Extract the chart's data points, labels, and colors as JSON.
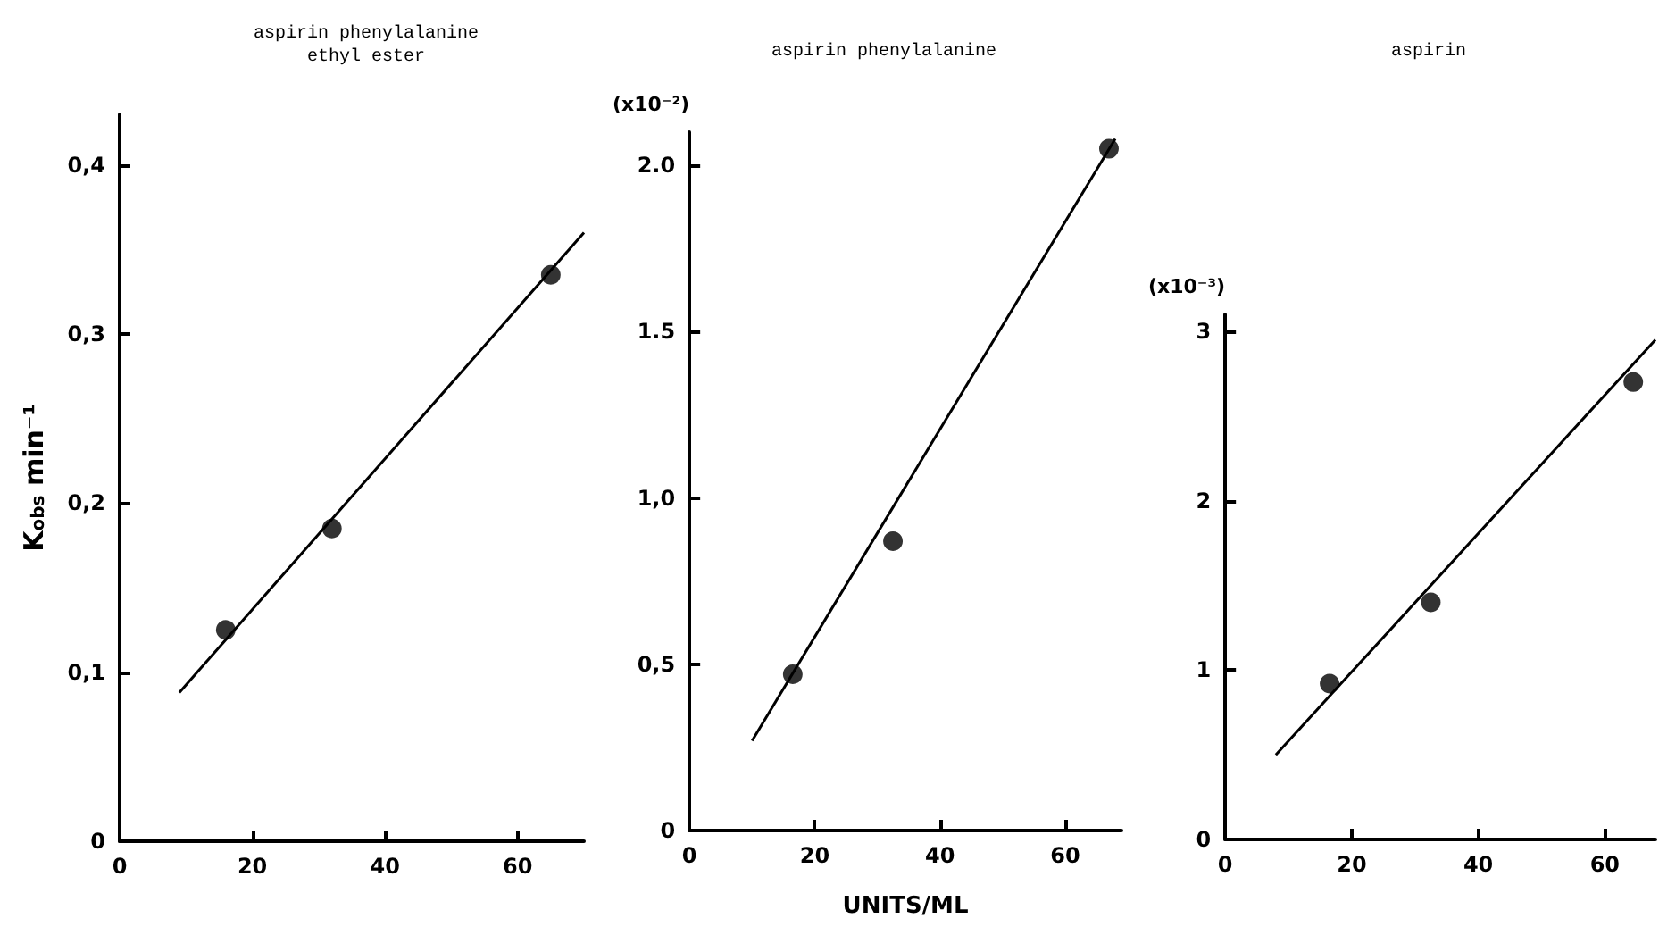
{
  "chart_data": [
    {
      "type": "scatter",
      "title": "aspirin phenylalanine\nethyl ester",
      "ylabel": "K$_{obs}$ min⁻¹",
      "xlim": [
        0,
        70
      ],
      "xticks": [
        0,
        20,
        40,
        60
      ],
      "ylim": [
        0,
        0.43
      ],
      "yticks": [
        0,
        {
          "value": 0.1,
          "label": "0,1"
        },
        {
          "value": 0.2,
          "label": "0,2"
        },
        {
          "value": 0.3,
          "label": "0,3"
        },
        {
          "value": 0.4,
          "label": "0,4"
        }
      ],
      "series": [
        {
          "marker": "circle",
          "color": "#000000",
          "x": [
            16,
            32,
            65
          ],
          "values": [
            0.125,
            0.185,
            0.335
          ]
        },
        {
          "type": "line",
          "marker": "none",
          "color": "#000000",
          "x": [
            9,
            70
          ],
          "values": [
            0.088,
            0.36
          ]
        }
      ]
    },
    {
      "type": "scatter",
      "title": "aspirin phenylalanine",
      "ylabel": "(x10⁻²)",
      "xlabel": "UNITS/ML",
      "xlim": [
        0,
        69
      ],
      "xticks": [
        0,
        20,
        40,
        60
      ],
      "ylim": [
        0,
        2.1
      ],
      "yticks": [
        0,
        {
          "value": 0.5,
          "label": "0,5"
        },
        {
          "value": 1,
          "label": "1,0"
        },
        {
          "value": 1.5,
          "label": "1.5"
        },
        {
          "value": 2,
          "label": "2.0"
        }
      ],
      "series": [
        {
          "marker": "circle",
          "color": "#000000",
          "x": [
            16.5,
            32.5,
            67
          ],
          "values": [
            0.47,
            0.87,
            2.05
          ]
        },
        {
          "type": "line",
          "marker": "none",
          "color": "#000000",
          "x": [
            10,
            68
          ],
          "values": [
            0.27,
            2.08
          ]
        }
      ]
    },
    {
      "type": "scatter",
      "title": "aspirin",
      "ylabel": "(x10⁻³)",
      "xlim": [
        0,
        68
      ],
      "xticks": [
        0,
        20,
        40,
        60
      ],
      "ylim": [
        0,
        3.1
      ],
      "yticks": [
        0,
        1,
        2,
        3
      ],
      "series": [
        {
          "marker": "circle",
          "color": "#000000",
          "x": [
            16.5,
            32.5,
            64.5
          ],
          "values": [
            0.92,
            1.4,
            2.7
          ]
        },
        {
          "type": "line",
          "marker": "none",
          "color": "#000000",
          "x": [
            8,
            68
          ],
          "values": [
            0.5,
            2.95
          ]
        }
      ]
    }
  ]
}
